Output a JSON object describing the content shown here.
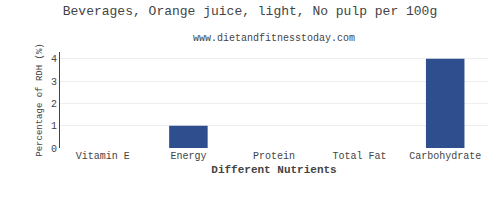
{
  "chart_data": {
    "type": "bar",
    "title": "Beverages, Orange juice, light, No pulp per 100g",
    "subtitle": "www.dietandfitnesstoday.com",
    "xlabel": "Different Nutrients",
    "ylabel": "Percentage of RDH (%)",
    "categories": [
      "Vitamin E",
      "Energy",
      "Protein",
      "Total Fat",
      "Carbohydrate"
    ],
    "values": [
      0.0,
      1.0,
      0.0,
      0.0,
      4.0
    ],
    "color": "#2e4e8e",
    "ylim": [
      0,
      4.3
    ],
    "yticks": [
      0,
      1,
      2,
      3,
      4
    ],
    "grid": true
  }
}
